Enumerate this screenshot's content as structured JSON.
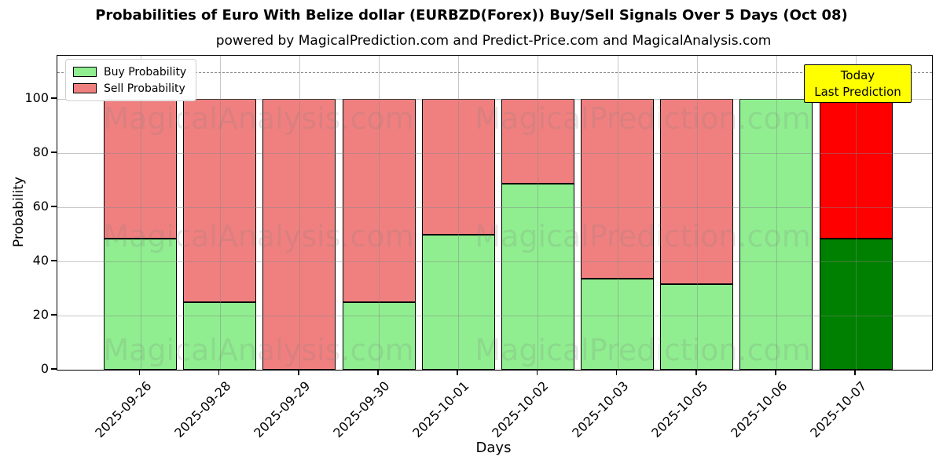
{
  "header": {
    "title": "Probabilities of Euro With Belize dollar (EURBZD(Forex)) Buy/Sell Signals Over 5 Days (Oct 08)",
    "subtitle": "powered by MagicalPrediction.com and Predict-Price.com and MagicalAnalysis.com"
  },
  "axes": {
    "xlabel": "Days",
    "ylabel": "Probability"
  },
  "legend": {
    "items": [
      {
        "label": "Buy Probability",
        "color": "#90ee90"
      },
      {
        "label": "Sell Probability",
        "color": "#f08080"
      }
    ]
  },
  "annotation": {
    "line1": "Today",
    "line2": "Last Prediction",
    "bg_color": "#ffff00"
  },
  "watermarks": {
    "left": "MagicalAnalysis.com",
    "right": "MagicalPrediction.com"
  },
  "colors": {
    "buy": "#90ee90",
    "sell": "#f08080",
    "buy_today": "#008000",
    "sell_today": "#ff0000",
    "bar_edge": "#000000",
    "grid": "#b0b0b0",
    "dashed_line": "#8a8a8a"
  },
  "chart_data": {
    "type": "bar",
    "stacked": true,
    "title": "Probabilities of Euro With Belize dollar (EURBZD(Forex)) Buy/Sell Signals Over 5 Days (Oct 08)",
    "xlabel": "Days",
    "ylabel": "Probability",
    "categories": [
      "2025-09-26",
      "2025-09-28",
      "2025-09-29",
      "2025-09-30",
      "2025-10-01",
      "2025-10-02",
      "2025-10-03",
      "2025-10-05",
      "2025-10-06",
      "2025-10-07"
    ],
    "series": [
      {
        "name": "Buy Probability",
        "values": [
          48.5,
          25,
          0,
          25,
          50,
          68.6,
          33.6,
          31.6,
          100,
          48.5
        ]
      },
      {
        "name": "Sell Probability",
        "values": [
          51.5,
          75,
          100,
          75,
          50,
          31.4,
          66.4,
          68.4,
          0,
          51.5
        ]
      }
    ],
    "today_index": 9,
    "ylim": [
      0,
      116
    ],
    "yticks": [
      0,
      20,
      40,
      60,
      80,
      100
    ],
    "dashed_line_y": 110,
    "grid": true,
    "legend_position": "upper left"
  }
}
